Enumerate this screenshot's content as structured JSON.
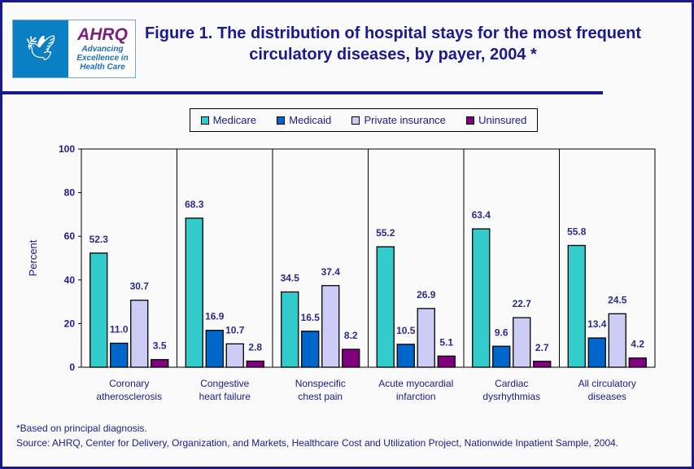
{
  "header": {
    "title": "Figure 1. The distribution of hospital stays for the most frequent circulatory diseases, by payer, 2004 *",
    "logo": {
      "org": "AHRQ",
      "tagline": "Advancing Excellence in Health Care",
      "seal": "Department of Health & Human Services USA"
    }
  },
  "chart_data": {
    "type": "bar",
    "ylabel": "Percent",
    "ylim": [
      0,
      100
    ],
    "yticks": [
      0,
      20,
      40,
      60,
      80,
      100
    ],
    "categories": [
      [
        "Coronary",
        "atherosclerosis"
      ],
      [
        "Congestive",
        "heart failure"
      ],
      [
        "Nonspecific",
        "chest pain"
      ],
      [
        "Acute myocardial",
        "infarction"
      ],
      [
        "Cardiac",
        "dysrhythmias"
      ],
      [
        "All circulatory",
        "diseases"
      ]
    ],
    "series": [
      {
        "name": "Medicare",
        "color": "#33cccc",
        "values": [
          52.3,
          68.3,
          34.5,
          55.2,
          63.4,
          55.8
        ]
      },
      {
        "name": "Medicaid",
        "color": "#0066cc",
        "values": [
          11.0,
          16.9,
          16.5,
          10.5,
          9.6,
          13.4
        ]
      },
      {
        "name": "Private insurance",
        "color": "#ccccf5",
        "values": [
          30.7,
          10.7,
          37.4,
          26.9,
          22.7,
          24.5
        ]
      },
      {
        "name": "Uninsured",
        "color": "#800080",
        "values": [
          3.5,
          2.8,
          8.2,
          5.1,
          2.7,
          4.2
        ]
      }
    ],
    "legend": "top",
    "grid": false
  },
  "footnotes": {
    "note": "*Based on principal diagnosis.",
    "source": "Source: AHRQ, Center for Delivery, Organization, and Markets, Healthcare Cost and Utilization Project, Nationwide Inpatient Sample, 2004."
  }
}
